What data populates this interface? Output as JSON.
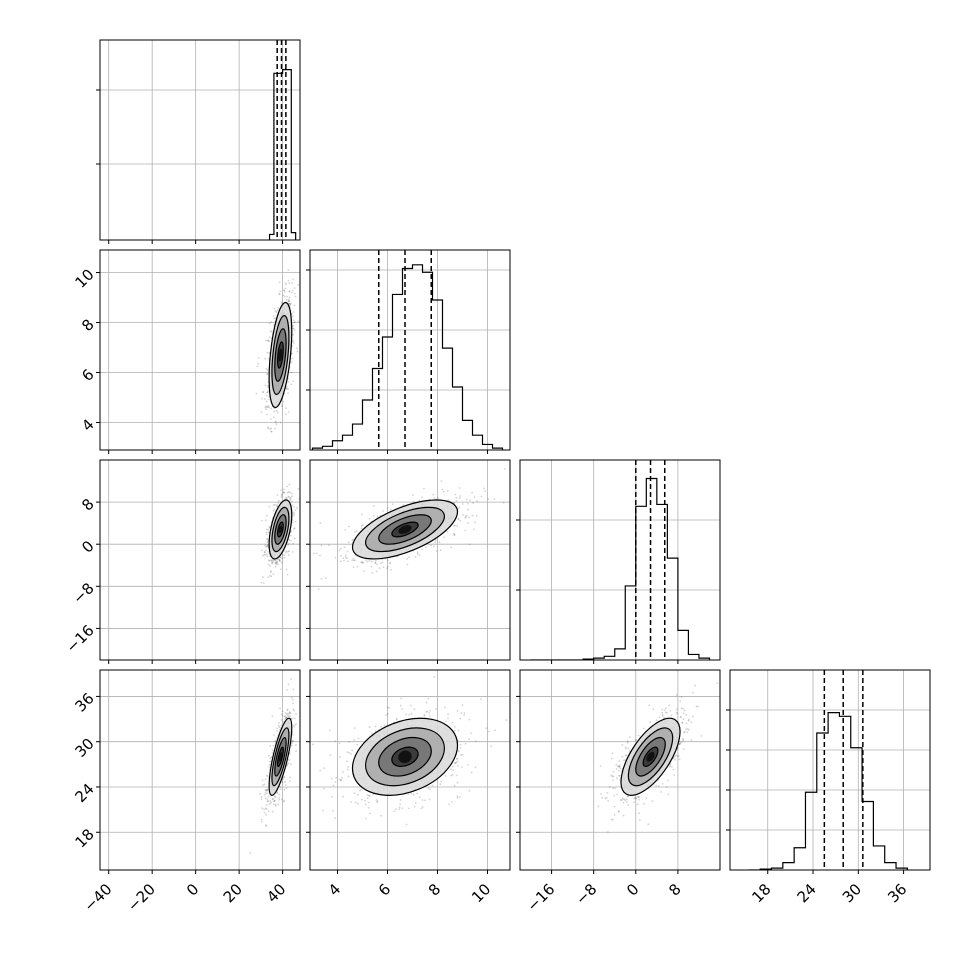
{
  "chart_data": {
    "type": "corner",
    "title": "",
    "n_params": 4,
    "parameters": [
      {
        "range": [
          -44,
          48
        ],
        "ticks": [
          -40,
          -20,
          0,
          20,
          40
        ],
        "tick_labels": [
          "−40",
          "−20",
          "0",
          "20",
          "40"
        ],
        "quantiles": [
          37.5,
          39.5,
          41.5
        ],
        "hist": {
          "edges": [
            34,
            36,
            38,
            40,
            42,
            44,
            46
          ],
          "counts": [
            0.03,
            0.9,
            0.9,
            0.92,
            0.92,
            0.04
          ]
        },
        "diag_hidden_ticks": [
          0.38,
          0.75
        ]
      },
      {
        "range": [
          2.9,
          10.9
        ],
        "ticks": [
          4,
          6,
          8,
          10
        ],
        "tick_labels": [
          "4",
          "6",
          "8",
          "10"
        ],
        "quantiles": [
          5.65,
          6.7,
          7.75
        ],
        "hist": {
          "edges": [
            3.0,
            3.4,
            3.8,
            4.2,
            4.6,
            5.0,
            5.4,
            5.8,
            6.2,
            6.6,
            7.0,
            7.4,
            7.8,
            8.2,
            8.6,
            9.0,
            9.4,
            9.8,
            10.2,
            10.6
          ],
          "counts": [
            0.01,
            0.02,
            0.05,
            0.08,
            0.14,
            0.27,
            0.44,
            0.61,
            0.84,
            0.98,
            1.0,
            0.96,
            0.81,
            0.55,
            0.34,
            0.16,
            0.08,
            0.03,
            0.01
          ]
        },
        "diag_hidden_ticks": [
          0.3,
          0.6,
          0.9
        ]
      },
      {
        "range": [
          -22,
          16
        ],
        "ticks": [
          -16,
          -8,
          0,
          8
        ],
        "tick_labels": [
          "−16",
          "−8",
          "0",
          "8"
        ],
        "quantiles": [
          0,
          2.8,
          5.5
        ],
        "hist": {
          "edges": [
            -20,
            -18,
            -16,
            -14,
            -12,
            -10,
            -8,
            -6,
            -4,
            -2,
            0,
            2,
            4,
            6,
            8,
            10,
            12,
            14
          ],
          "counts": [
            0.0,
            0.0,
            0.0,
            0.0,
            0.0,
            0.005,
            0.01,
            0.02,
            0.06,
            0.4,
            0.83,
            0.98,
            0.84,
            0.55,
            0.16,
            0.03,
            0.01
          ]
        },
        "diag_hidden_ticks": [
          0.35,
          0.7
        ]
      },
      {
        "range": [
          13,
          39.5
        ],
        "ticks": [
          18,
          24,
          30,
          36
        ],
        "tick_labels": [
          "18",
          "24",
          "30",
          "36"
        ],
        "quantiles": [
          25.5,
          28.0,
          30.6
        ],
        "hist": {
          "edges": [
            15.5,
            17.0,
            18.5,
            20.0,
            21.5,
            23.0,
            24.5,
            26.0,
            27.5,
            29.0,
            30.5,
            32.0,
            33.5,
            35.0,
            36.5
          ],
          "counts": [
            0.0,
            0.005,
            0.01,
            0.04,
            0.12,
            0.42,
            0.74,
            0.85,
            0.83,
            0.66,
            0.37,
            0.13,
            0.04,
            0.01
          ]
        },
        "diag_hidden_ticks": [
          0.2,
          0.4,
          0.6,
          0.8
        ]
      }
    ],
    "pairs": [
      {
        "x": 0,
        "y": 1,
        "center": [
          39,
          6.7
        ],
        "sigma": [
          2.6,
          1.05
        ],
        "corr": 0.45
      },
      {
        "x": 0,
        "y": 2,
        "center": [
          39,
          2.8
        ],
        "sigma": [
          2.6,
          2.8
        ],
        "corr": 0.5
      },
      {
        "x": 1,
        "y": 2,
        "center": [
          6.7,
          2.8
        ],
        "sigma": [
          1.05,
          2.8
        ],
        "corr": 0.6
      },
      {
        "x": 0,
        "y": 3,
        "center": [
          39,
          28.0
        ],
        "sigma": [
          2.6,
          2.55
        ],
        "corr": 0.75
      },
      {
        "x": 1,
        "y": 3,
        "center": [
          6.7,
          28.0
        ],
        "sigma": [
          1.05,
          2.55
        ],
        "corr": 0.3
      },
      {
        "x": 2,
        "y": 3,
        "center": [
          2.8,
          28.0
        ],
        "sigma": [
          2.8,
          2.55
        ],
        "corr": 0.65
      }
    ],
    "contour_levels_sigma": [
      0.5,
      1.0,
      1.5,
      2.0
    ],
    "grid": true,
    "colors": {
      "ink": "#000000",
      "grid": "#b0b0b0",
      "scatter": "#555555"
    }
  }
}
